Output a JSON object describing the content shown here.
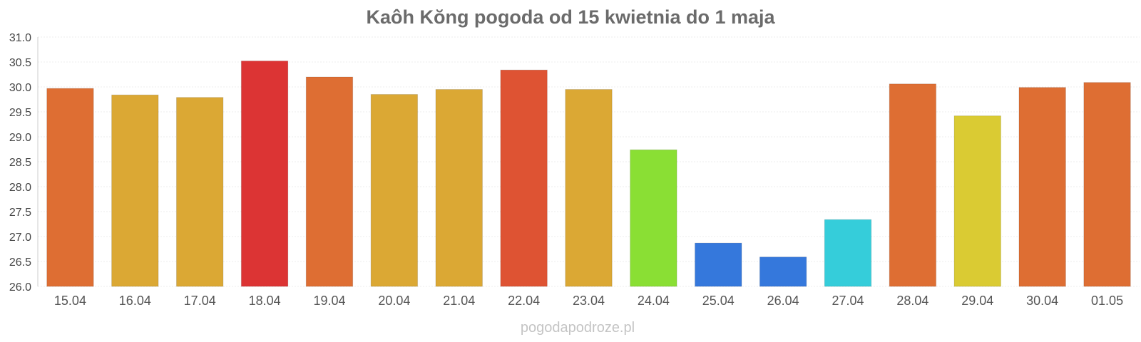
{
  "chart_data": {
    "type": "bar",
    "title": "Kaôh Kŏng pogoda od 15 kwietnia do 1 maja",
    "xlabel": "",
    "ylabel": "",
    "ylim": [
      26.0,
      31.0
    ],
    "yticks": [
      "26.0",
      "26.5",
      "27.0",
      "27.5",
      "28.0",
      "28.5",
      "29.0",
      "29.5",
      "30.0",
      "30.5",
      "31.0"
    ],
    "grid": true,
    "categories": [
      "15.04",
      "16.04",
      "17.04",
      "18.04",
      "19.04",
      "20.04",
      "21.04",
      "22.04",
      "23.04",
      "24.04",
      "25.04",
      "26.04",
      "27.04",
      "28.04",
      "29.04",
      "30.04",
      "01.05"
    ],
    "values": [
      29.97,
      29.84,
      29.79,
      30.52,
      30.2,
      29.85,
      29.95,
      30.34,
      29.95,
      28.74,
      26.87,
      26.59,
      27.34,
      30.06,
      29.42,
      29.99,
      30.09
    ],
    "colors": [
      "#de6e33",
      "#dba834",
      "#dba834",
      "#dc3434",
      "#de6e33",
      "#dba834",
      "#dba834",
      "#de5333",
      "#dba834",
      "#8adf34",
      "#3578dc",
      "#3578dc",
      "#35cdda",
      "#de6e33",
      "#dacb33",
      "#de6e33",
      "#de6e33"
    ]
  },
  "watermark": "pogodapodroze.pl"
}
